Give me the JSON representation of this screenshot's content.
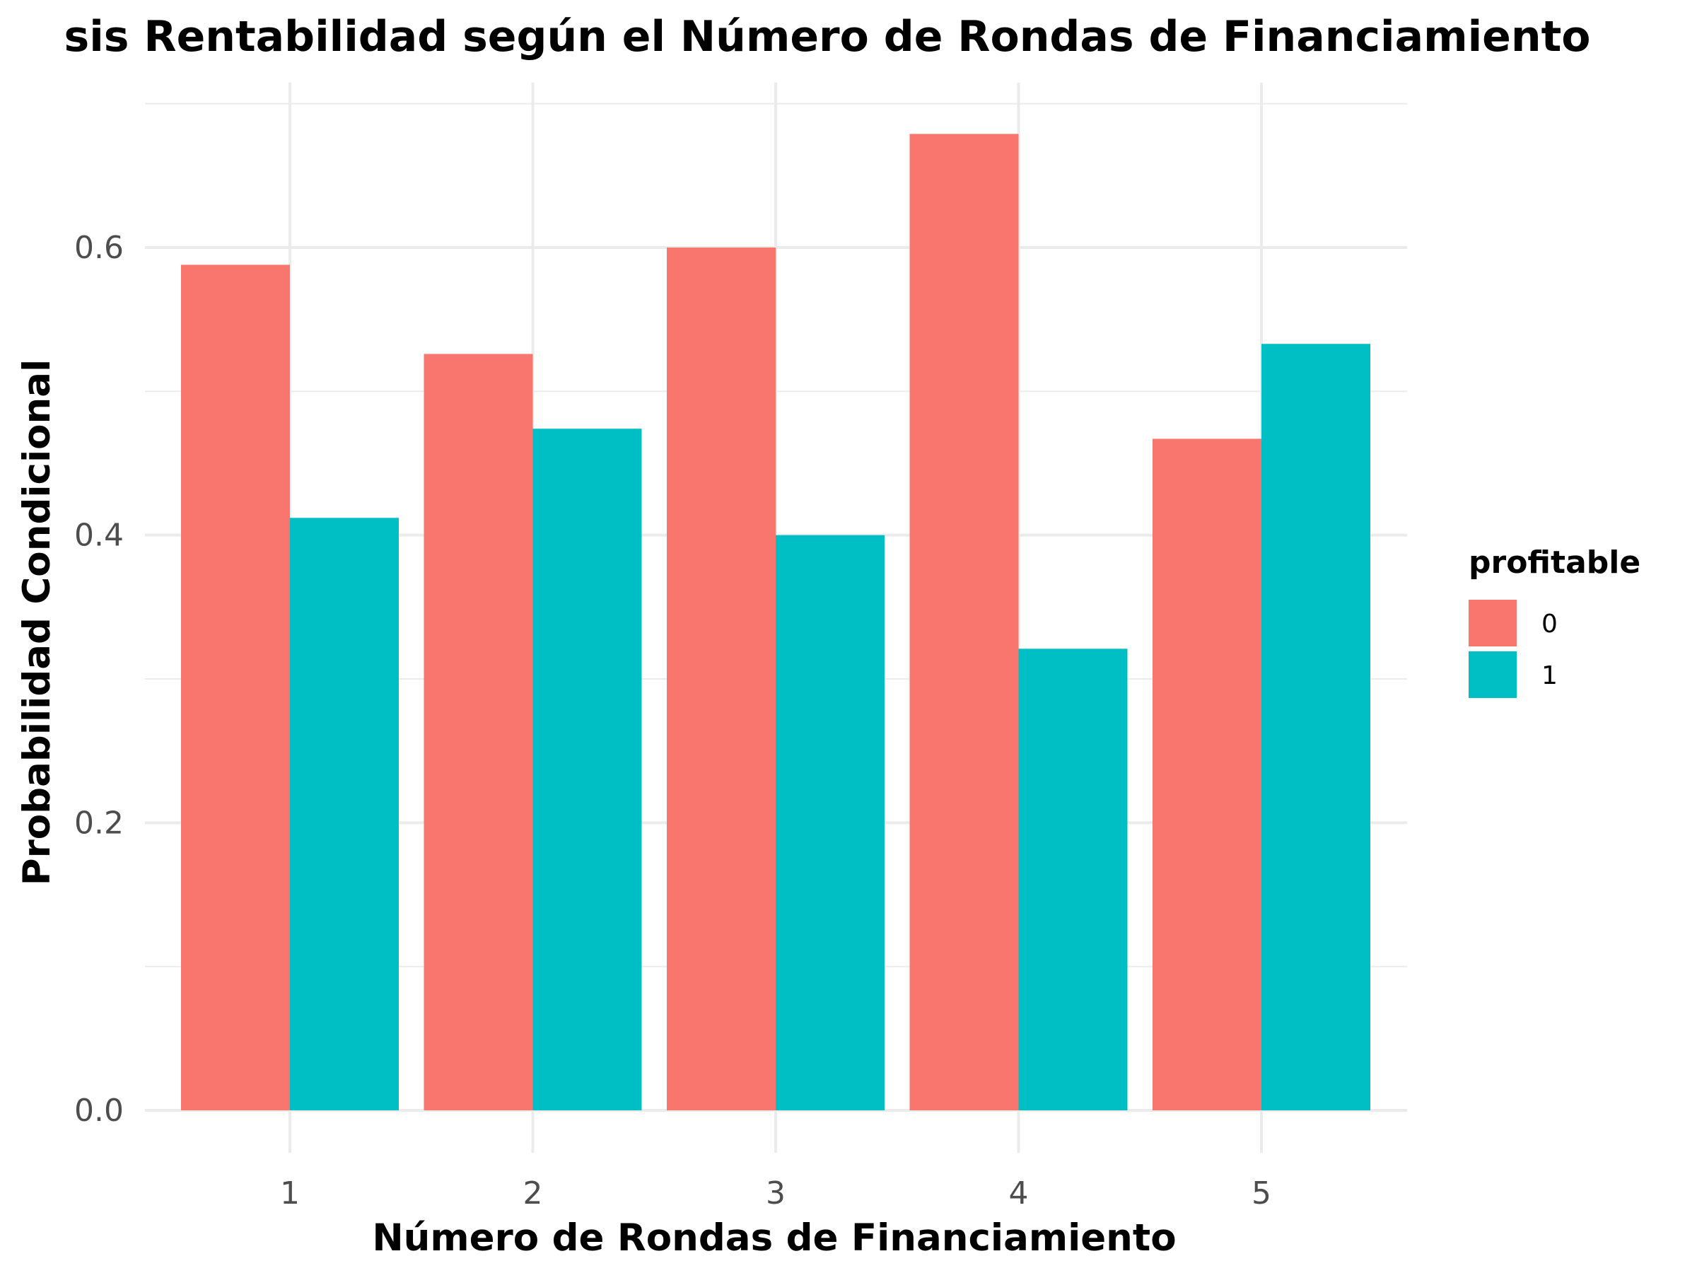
{
  "chart_data": {
    "type": "bar",
    "title": "sis Rentabilidad según el Número de Rondas de Financiamiento",
    "xlabel": "Número de Rondas de Financiamiento",
    "ylabel": "Probabilidad Condicional",
    "categories": [
      "1",
      "2",
      "3",
      "4",
      "5"
    ],
    "series": [
      {
        "name": "0",
        "color": "#F8766D",
        "values": [
          0.588,
          0.526,
          0.6,
          0.679,
          0.467
        ]
      },
      {
        "name": "1",
        "color": "#00BFC4",
        "values": [
          0.412,
          0.474,
          0.4,
          0.321,
          0.533
        ]
      }
    ],
    "yticks": [
      0.0,
      0.2,
      0.4,
      0.6
    ],
    "ytick_labels": [
      "0.0",
      "0.2",
      "0.4",
      "0.6"
    ],
    "ylim": [
      0,
      0.7
    ],
    "legend": {
      "title": "profitable",
      "position": "right"
    },
    "grid": true
  }
}
